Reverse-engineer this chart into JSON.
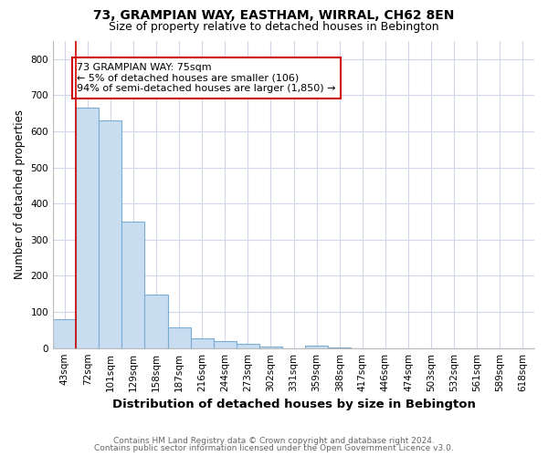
{
  "title1": "73, GRAMPIAN WAY, EASTHAM, WIRRAL, CH62 8EN",
  "title2": "Size of property relative to detached houses in Bebington",
  "xlabel": "Distribution of detached houses by size in Bebington",
  "ylabel": "Number of detached properties",
  "categories": [
    "43sqm",
    "72sqm",
    "101sqm",
    "129sqm",
    "158sqm",
    "187sqm",
    "216sqm",
    "244sqm",
    "273sqm",
    "302sqm",
    "331sqm",
    "359sqm",
    "388sqm",
    "417sqm",
    "446sqm",
    "474sqm",
    "503sqm",
    "532sqm",
    "561sqm",
    "589sqm",
    "618sqm"
  ],
  "values": [
    80,
    665,
    630,
    350,
    148,
    58,
    27,
    20,
    13,
    5,
    0,
    8,
    1,
    0,
    0,
    0,
    0,
    0,
    0,
    0,
    0
  ],
  "bar_color": "#c8ddf0",
  "bar_edgecolor": "#7aadd4",
  "property_line_color": "#cc0000",
  "annotation_line1": "73 GRAMPIAN WAY: 75sqm",
  "annotation_line2": "← 5% of detached houses are smaller (106)",
  "annotation_line3": "94% of semi-detached houses are larger (1,850) →",
  "annotation_box_color": "#ffffff",
  "annotation_box_edgecolor": "#cc0000",
  "ylim": [
    0,
    850
  ],
  "yticks": [
    0,
    100,
    200,
    300,
    400,
    500,
    600,
    700,
    800
  ],
  "bg_color": "#ffffff",
  "plot_bg_color": "#ffffff",
  "grid_color": "#d0d8e8",
  "footer1": "Contains HM Land Registry data © Crown copyright and database right 2024.",
  "footer2": "Contains public sector information licensed under the Open Government Licence v3.0.",
  "title1_fontsize": 10,
  "title2_fontsize": 9,
  "xlabel_fontsize": 9.5,
  "ylabel_fontsize": 8.5,
  "tick_fontsize": 7.5,
  "annotation_fontsize": 8,
  "footer_fontsize": 6.5
}
